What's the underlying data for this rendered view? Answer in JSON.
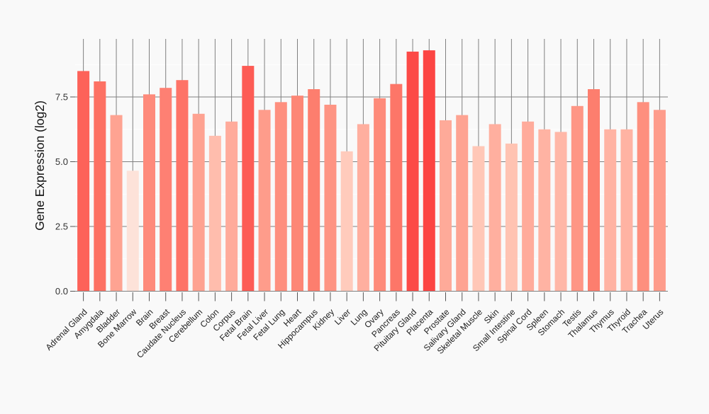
{
  "chart_data": {
    "type": "bar",
    "title": "",
    "xlabel": "",
    "ylabel": "Gene Expression (log2)",
    "ylim": [
      0,
      9.74
    ],
    "yticks": [
      0.0,
      2.5,
      5.0,
      7.5
    ],
    "ytick_labels": [
      "0.0",
      "2.5",
      "5.0",
      "7.5"
    ],
    "minor_gridlines": [
      1.25,
      3.75,
      6.25,
      8.75
    ],
    "grid": "on",
    "legend": "none",
    "categories": [
      "Adrenal Gland",
      "Amygdala",
      "Bladder",
      "Bone Marrow",
      "Brain",
      "Breast",
      "Caudate Nucleus",
      "Cerebellum",
      "Colon",
      "Corpus",
      "Fetal Brain",
      "Fetal Liver",
      "Fetal Lung",
      "Heart",
      "Hippocampus",
      "Kidney",
      "Liver",
      "Lung",
      "Ovary",
      "Pancreas",
      "Pituitary Gland",
      "Placenta",
      "Prostate",
      "Salivary Gland",
      "Skeletal Muscle",
      "Skin",
      "Small Intestine",
      "Spinal Cord",
      "Spleen",
      "Stomach",
      "Testis",
      "Thalamus",
      "Thymus",
      "Thyroid",
      "Trachea",
      "Uterus"
    ],
    "values": [
      8.5,
      8.1,
      6.8,
      4.65,
      7.6,
      7.85,
      8.15,
      6.85,
      6.0,
      6.55,
      8.7,
      7.0,
      7.3,
      7.55,
      7.8,
      7.2,
      5.4,
      6.45,
      7.45,
      8.0,
      9.25,
      9.3,
      6.6,
      6.8,
      5.6,
      6.45,
      5.7,
      6.55,
      6.25,
      6.15,
      7.15,
      7.8,
      6.25,
      6.25,
      7.3,
      7.0
    ],
    "bar_colors": [
      "#fd6259",
      "#fd7163",
      "#fea392",
      "#fde2d9",
      "#fe8a7b",
      "#fe8073",
      "#fe7367",
      "#fea291",
      "#ffbdad",
      "#ffab9b",
      "#fd5c55",
      "#fe9c8b",
      "#fe8f7e",
      "#fd8776",
      "#fd7e6e",
      "#fe9483",
      "#ffcbbc",
      "#ffaf9f",
      "#fe8b7a",
      "#fd7668",
      "#fc4a47",
      "#fc4543",
      "#feaa99",
      "#fea392",
      "#ffc7b7",
      "#ffaf9f",
      "#ffc3b2",
      "#ffab9b",
      "#ffb3a3",
      "#ffb7a7",
      "#fe9685",
      "#fd7e6e",
      "#ffb3a3",
      "#ffb3a3",
      "#fe8f7e",
      "#fe9c8b"
    ]
  },
  "colors": {
    "background": "#f9f9f9",
    "major_grid": "#808080",
    "minor_grid": "#ffffff",
    "category_line": "#808080",
    "tick": "#555555",
    "axis_text": "#333333",
    "axis_title": "#111111",
    "scale_low": "#fde2d9",
    "scale_high": "#fc4543"
  }
}
